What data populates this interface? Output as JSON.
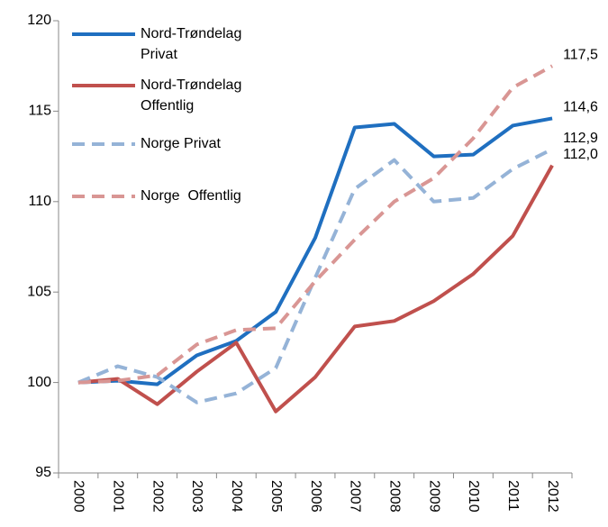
{
  "chart_data": {
    "type": "line",
    "categories": [
      "2000",
      "2001",
      "2002",
      "2003",
      "2004",
      "2005",
      "2006",
      "2007",
      "2008",
      "2009",
      "2010",
      "2011",
      "2012"
    ],
    "series": [
      {
        "name": "Nord-Trøndelag Privat",
        "color": "#1f6fc0",
        "dash": false,
        "values": [
          100,
          100.1,
          99.9,
          101.5,
          102.3,
          103.9,
          108,
          114.1,
          114.3,
          112.5,
          112.6,
          114.2,
          114.6
        ],
        "value_labels": [
          null,
          null,
          null,
          null,
          null,
          null,
          null,
          null,
          null,
          null,
          null,
          null,
          "114,6"
        ]
      },
      {
        "name": "Nord-Trøndelag Offentlig",
        "color": "#c0504d",
        "dash": false,
        "values": [
          100,
          100.2,
          98.8,
          100.6,
          102.2,
          98.4,
          100.3,
          103.1,
          103.4,
          104.5,
          106,
          108.1,
          112.0
        ],
        "value_labels": [
          null,
          null,
          null,
          null,
          null,
          null,
          null,
          null,
          null,
          null,
          null,
          null,
          "112,0"
        ]
      },
      {
        "name": "Norge Privat",
        "color": "#95b3d7",
        "dash": true,
        "values": [
          100,
          100.9,
          100.3,
          98.9,
          99.4,
          100.8,
          105.8,
          110.7,
          112.3,
          110,
          110.2,
          111.8,
          112.9
        ],
        "value_labels": [
          null,
          null,
          null,
          null,
          null,
          null,
          null,
          null,
          null,
          null,
          null,
          null,
          "112,9"
        ]
      },
      {
        "name": "Norge  Offentlig",
        "color": "#d99694",
        "dash": true,
        "values": [
          100,
          100.1,
          100.4,
          102.1,
          102.9,
          103,
          105.6,
          107.9,
          110,
          111.3,
          113.5,
          116.3,
          117.5
        ],
        "value_labels": [
          null,
          null,
          null,
          null,
          null,
          null,
          null,
          null,
          null,
          null,
          null,
          null,
          "117,5"
        ]
      }
    ],
    "ylim": [
      95,
      120
    ],
    "yticks": [
      95,
      100,
      105,
      110,
      115,
      120
    ],
    "grid": false,
    "legend": "upper left"
  }
}
